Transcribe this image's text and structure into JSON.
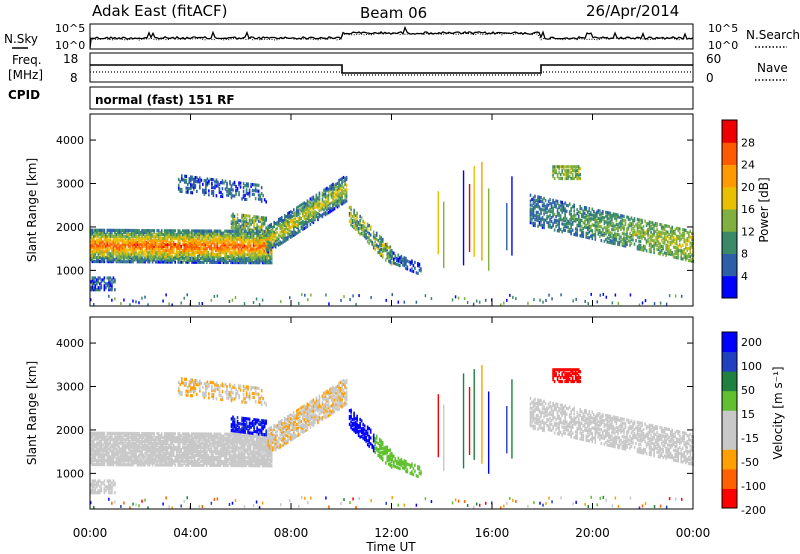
{
  "header": {
    "station": "Adak East (fitACF)",
    "beam": "Beam 06",
    "date": "26/Apr/2014"
  },
  "nsky_panel": {
    "left_label": "N.Sky",
    "right_label": "N.Search",
    "left_ticks": [
      "10^5",
      "10^0"
    ],
    "right_ticks": [
      "10^5",
      "10^0"
    ]
  },
  "freq_panel": {
    "left_label_line1": "Freq.",
    "left_label_line2": "[MHz]",
    "right_label": "Nave",
    "left_ticks": [
      "18",
      "8"
    ],
    "right_ticks": [
      "60",
      "0"
    ]
  },
  "cpid_panel": {
    "label": "CPID",
    "text": "normal (fast) 151 RF"
  },
  "colors": {
    "power_scale": [
      "#0000ff",
      "#2d5fa8",
      "#3a8a6a",
      "#7fb040",
      "#e8c000",
      "#ff9a00",
      "#ff5a00",
      "#ee0000"
    ],
    "velocity_scale": [
      "#ff0000",
      "#ff6000",
      "#ffa000",
      "#c8c8c8",
      "#c8c8c8",
      "#60c030",
      "#208040",
      "#2040c0",
      "#0000ff"
    ],
    "ground_scatter": "#c8c8c8"
  },
  "chart_data": [
    {
      "type": "heatmap",
      "title": "Power",
      "xlabel": "",
      "ylabel": "Slant Range [km]",
      "ylim": [
        180,
        4600
      ],
      "y_ticks": [
        1000,
        2000,
        3000,
        4000
      ],
      "colorbar_label": "Power [dB]",
      "colorbar_ticks": [
        4,
        8,
        12,
        16,
        20,
        24,
        28
      ],
      "colorbar_range": [
        0,
        32
      ]
    },
    {
      "type": "heatmap",
      "title": "Velocity",
      "xlabel": "Time UT",
      "ylabel": "Slant Range [km]",
      "ylim": [
        180,
        4600
      ],
      "y_ticks": [
        1000,
        2000,
        3000,
        4000
      ],
      "colorbar_label": "Velocity [m s⁻¹]",
      "colorbar_ticks": [
        "200",
        "100",
        "50",
        "15",
        "-15",
        "-50",
        "-100",
        "-200"
      ]
    }
  ],
  "time_axis": {
    "label": "Time UT",
    "ticks": [
      "00:00",
      "04:00",
      "08:00",
      "12:00",
      "16:00",
      "20:00",
      "00:00"
    ]
  }
}
